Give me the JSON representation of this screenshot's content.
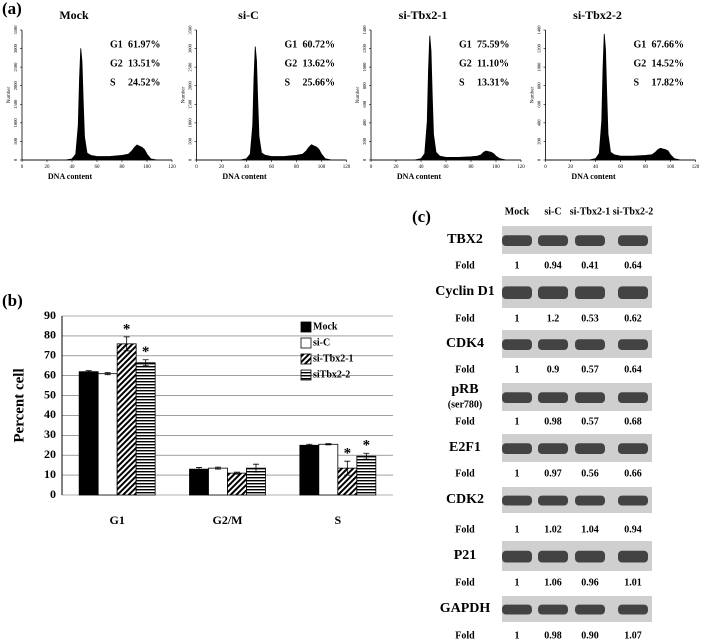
{
  "panels": [
    "(a)",
    "(b)",
    "(c)"
  ],
  "chart_data": [
    {
      "type": "area",
      "title": "Mock",
      "xlabel": "DNA content",
      "ylabel": "Number",
      "stats": [
        [
          "G1",
          "61.97%"
        ],
        [
          "G2",
          "13.51%"
        ],
        [
          "S",
          "24.52%"
        ]
      ],
      "x": [
        0,
        35,
        40,
        43,
        45,
        46,
        47,
        48,
        49,
        50,
        52,
        55,
        60,
        70,
        80,
        85,
        88,
        90,
        92,
        94,
        96,
        98,
        100,
        103,
        108,
        120
      ],
      "values": [
        0,
        0,
        31,
        155,
        930,
        2170,
        3007,
        2635,
        1550,
        620,
        186,
        124,
        93,
        93,
        124,
        155,
        248,
        341,
        403,
        372,
        341,
        279,
        155,
        31,
        0,
        0
      ],
      "color": "#000000",
      "xlim": [
        0,
        120
      ],
      "xticks": [
        0,
        20,
        40,
        60,
        80,
        100,
        120
      ],
      "ylim": [
        0,
        3500
      ],
      "yticks": [
        0,
        500,
        1000,
        1500,
        2000,
        2500,
        3000,
        3500
      ]
    },
    {
      "type": "area",
      "title": "si-C",
      "xlabel": "DNA content",
      "ylabel": "Number",
      "stats": [
        [
          "G1",
          "60.72%"
        ],
        [
          "G2",
          "13.62%"
        ],
        [
          "S",
          "25.66%"
        ]
      ],
      "x": [
        0,
        35,
        40,
        43,
        45,
        46,
        47,
        48,
        49,
        50,
        52,
        55,
        60,
        70,
        80,
        85,
        88,
        90,
        92,
        94,
        96,
        98,
        100,
        103,
        108,
        120
      ],
      "values": [
        0,
        0,
        32,
        158,
        945,
        2205,
        3056,
        2678,
        1575,
        630,
        189,
        126,
        95,
        95,
        126,
        158,
        252,
        347,
        410,
        378,
        347,
        284,
        158,
        32,
        0,
        0
      ],
      "color": "#000000",
      "xlim": [
        0,
        120
      ],
      "xticks": [
        0,
        20,
        40,
        60,
        80,
        100,
        120
      ],
      "ylim": [
        0,
        3500
      ],
      "yticks": [
        0,
        500,
        1000,
        1500,
        2000,
        2500,
        3000,
        3500
      ]
    },
    {
      "type": "area",
      "title": "si-Tbx2-1",
      "xlabel": "DNA content",
      "ylabel": "Number",
      "stats": [
        [
          "G1",
          "75.59%"
        ],
        [
          "G2",
          "11.10%"
        ],
        [
          "S",
          "13.31%"
        ]
      ],
      "x": [
        0,
        35,
        40,
        43,
        45,
        46,
        47,
        48,
        49,
        50,
        52,
        55,
        60,
        70,
        80,
        85,
        88,
        90,
        92,
        94,
        96,
        98,
        100,
        103,
        108,
        120
      ],
      "values": [
        0,
        0,
        14,
        69,
        414,
        966,
        1339,
        1173,
        690,
        276,
        83,
        41,
        28,
        28,
        35,
        41,
        55,
        83,
        97,
        90,
        83,
        69,
        41,
        14,
        0,
        0
      ],
      "color": "#000000",
      "xlim": [
        0,
        120
      ],
      "xticks": [
        0,
        20,
        40,
        60,
        80,
        100,
        120
      ],
      "ylim": [
        0,
        1400
      ],
      "yticks": [
        0,
        200,
        400,
        600,
        800,
        1000,
        1200,
        1400
      ]
    },
    {
      "type": "area",
      "title": "si-Tbx2-2",
      "xlabel": "DNA content",
      "ylabel": "Number",
      "stats": [
        [
          "G1",
          "67.66%"
        ],
        [
          "G2",
          "14.52%"
        ],
        [
          "S",
          "17.82%"
        ]
      ],
      "x": [
        0,
        35,
        40,
        43,
        45,
        46,
        47,
        48,
        49,
        50,
        52,
        55,
        60,
        70,
        80,
        85,
        88,
        90,
        92,
        94,
        96,
        98,
        100,
        103,
        108,
        120
      ],
      "values": [
        0,
        0,
        14,
        70,
        420,
        980,
        1358,
        1190,
        700,
        280,
        84,
        56,
        42,
        42,
        49,
        56,
        84,
        112,
        126,
        119,
        112,
        98,
        56,
        14,
        0,
        0
      ],
      "color": "#000000",
      "xlim": [
        0,
        120
      ],
      "xticks": [
        0,
        20,
        40,
        60,
        80,
        100,
        120
      ],
      "ylim": [
        0,
        1400
      ],
      "yticks": [
        0,
        200,
        400,
        600,
        800,
        1000,
        1200,
        1400
      ]
    },
    {
      "type": "bar",
      "ylabel": "Percent cell",
      "categories": [
        "G1",
        "G2/M",
        "S"
      ],
      "series": [
        {
          "name": "Mock",
          "color": "#000000",
          "pattern": "solid",
          "values": [
            62,
            13,
            25
          ],
          "errors": [
            0.5,
            0.8,
            0.5
          ],
          "significance": [
            null,
            null,
            null
          ]
        },
        {
          "name": "si-C",
          "color": "#ffffff",
          "pattern": "solid",
          "values": [
            61,
            13.5,
            25.5
          ],
          "errors": [
            0.5,
            0.5,
            0.3
          ],
          "significance": [
            null,
            null,
            null
          ]
        },
        {
          "name": "si-Tbx2-1",
          "color": "#000000",
          "pattern": "diagonal",
          "values": [
            76,
            11,
            13.5
          ],
          "errors": [
            3.5,
            0.5,
            3.5
          ],
          "significance": [
            "*",
            null,
            "*"
          ]
        },
        {
          "name": "siTbx2-2",
          "color": "#000000",
          "pattern": "horizontal",
          "values": [
            66.5,
            13.5,
            19.5
          ],
          "errors": [
            1.5,
            2,
            1.5
          ],
          "significance": [
            "*",
            null,
            "*"
          ]
        }
      ],
      "ylim": [
        0,
        90
      ],
      "yticks": [
        0,
        10,
        20,
        30,
        40,
        50,
        60,
        70,
        80,
        90
      ],
      "grid": true,
      "legend": "top-right"
    }
  ],
  "blot": {
    "columns": [
      "Mock",
      "si-C",
      "si-Tbx2-1",
      "si-Tbx2-2"
    ],
    "fold_label": "Fold",
    "rows": [
      {
        "name": "TBX2",
        "fold": [
          "1",
          "0.94",
          "0.41",
          "0.64"
        ]
      },
      {
        "name": "Cyclin D1",
        "fold": [
          "1",
          "1.2",
          "0.53",
          "0.62"
        ]
      },
      {
        "name": "CDK4",
        "fold": [
          "1",
          "0.9",
          "0.57",
          "0.64"
        ]
      },
      {
        "name": "pRB",
        "sub": "(ser780)",
        "fold": [
          "1",
          "0.98",
          "0.57",
          "0.68"
        ]
      },
      {
        "name": "E2F1",
        "fold": [
          "1",
          "0.97",
          "0.56",
          "0.66"
        ]
      },
      {
        "name": "CDK2",
        "fold": [
          "1",
          "1.02",
          "1.04",
          "0.94"
        ]
      },
      {
        "name": "P21",
        "fold": [
          "1",
          "1.06",
          "0.96",
          "1.01"
        ]
      },
      {
        "name": "GAPDH",
        "fold": [
          "1",
          "0.98",
          "0.90",
          "1.07"
        ]
      }
    ]
  }
}
